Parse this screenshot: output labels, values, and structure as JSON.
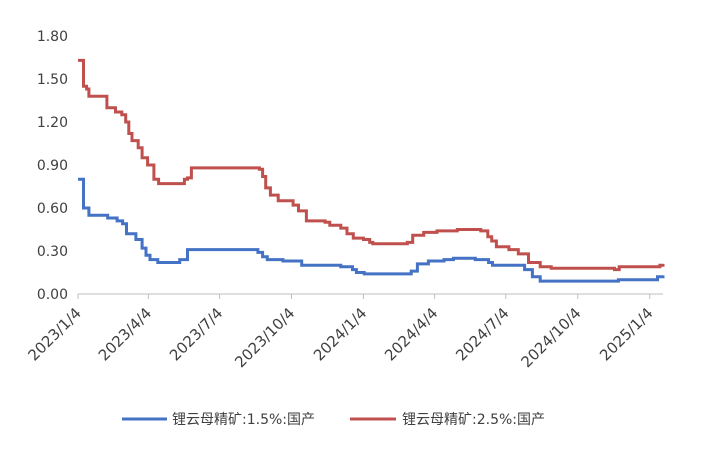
{
  "chart_data": {
    "type": "line",
    "title": "",
    "xlabel": "",
    "ylabel": "",
    "ylim": [
      0,
      1.8
    ],
    "yticks": [
      "0.00",
      "0.30",
      "0.60",
      "0.90",
      "1.20",
      "1.50",
      "1.80"
    ],
    "xticks": [
      "2023/1/4",
      "2023/4/4",
      "2023/7/4",
      "2023/10/4",
      "2024/1/4",
      "2024/4/4",
      "2024/7/4",
      "2024/10/4",
      "2025/1/4"
    ],
    "x_domain_days": [
      0,
      748
    ],
    "xtick_days": [
      0,
      90,
      181,
      273,
      365,
      456,
      547,
      639,
      731
    ],
    "legend_position": "bottom",
    "series": [
      {
        "name": "锂云母精矿:1.5%:国产",
        "color": "#4472C4",
        "points": [
          [
            0,
            0.8
          ],
          [
            7,
            0.8
          ],
          [
            7,
            0.6
          ],
          [
            11,
            0.6
          ],
          [
            14,
            0.55
          ],
          [
            35,
            0.55
          ],
          [
            38,
            0.53
          ],
          [
            50,
            0.51
          ],
          [
            57,
            0.49
          ],
          [
            62,
            0.42
          ],
          [
            74,
            0.38
          ],
          [
            82,
            0.32
          ],
          [
            87,
            0.27
          ],
          [
            92,
            0.24
          ],
          [
            102,
            0.22
          ],
          [
            125,
            0.22
          ],
          [
            130,
            0.24
          ],
          [
            137,
            0.24
          ],
          [
            140,
            0.31
          ],
          [
            222,
            0.31
          ],
          [
            230,
            0.29
          ],
          [
            236,
            0.26
          ],
          [
            242,
            0.24
          ],
          [
            262,
            0.23
          ],
          [
            286,
            0.2
          ],
          [
            336,
            0.19
          ],
          [
            351,
            0.17
          ],
          [
            356,
            0.15
          ],
          [
            366,
            0.14
          ],
          [
            420,
            0.14
          ],
          [
            426,
            0.16
          ],
          [
            434,
            0.21
          ],
          [
            448,
            0.23
          ],
          [
            468,
            0.24
          ],
          [
            480,
            0.25
          ],
          [
            500,
            0.25
          ],
          [
            508,
            0.24
          ],
          [
            525,
            0.22
          ],
          [
            530,
            0.2
          ],
          [
            565,
            0.2
          ],
          [
            571,
            0.17
          ],
          [
            581,
            0.12
          ],
          [
            591,
            0.09
          ],
          [
            680,
            0.09
          ],
          [
            691,
            0.1
          ],
          [
            738,
            0.1
          ],
          [
            741,
            0.12
          ],
          [
            748,
            0.13
          ]
        ]
      },
      {
        "name": "锂云母精矿:2.5%:国产",
        "color": "#C0504D",
        "points": [
          [
            0,
            1.63
          ],
          [
            7,
            1.63
          ],
          [
            7,
            1.45
          ],
          [
            11,
            1.43
          ],
          [
            14,
            1.38
          ],
          [
            31,
            1.38
          ],
          [
            37,
            1.3
          ],
          [
            48,
            1.27
          ],
          [
            56,
            1.25
          ],
          [
            61,
            1.2
          ],
          [
            65,
            1.12
          ],
          [
            69,
            1.07
          ],
          [
            77,
            1.02
          ],
          [
            82,
            0.95
          ],
          [
            89,
            0.9
          ],
          [
            97,
            0.8
          ],
          [
            103,
            0.77
          ],
          [
            133,
            0.77
          ],
          [
            136,
            0.8
          ],
          [
            140,
            0.81
          ],
          [
            145,
            0.88
          ],
          [
            222,
            0.88
          ],
          [
            232,
            0.87
          ],
          [
            236,
            0.82
          ],
          [
            240,
            0.74
          ],
          [
            246,
            0.69
          ],
          [
            256,
            0.65
          ],
          [
            275,
            0.62
          ],
          [
            282,
            0.58
          ],
          [
            292,
            0.51
          ],
          [
            316,
            0.5
          ],
          [
            322,
            0.48
          ],
          [
            336,
            0.46
          ],
          [
            344,
            0.42
          ],
          [
            352,
            0.39
          ],
          [
            365,
            0.38
          ],
          [
            373,
            0.36
          ],
          [
            377,
            0.35
          ],
          [
            421,
            0.36
          ],
          [
            428,
            0.41
          ],
          [
            442,
            0.43
          ],
          [
            459,
            0.44
          ],
          [
            485,
            0.45
          ],
          [
            500,
            0.45
          ],
          [
            515,
            0.44
          ],
          [
            524,
            0.4
          ],
          [
            529,
            0.37
          ],
          [
            535,
            0.33
          ],
          [
            551,
            0.31
          ],
          [
            563,
            0.28
          ],
          [
            576,
            0.22
          ],
          [
            591,
            0.19
          ],
          [
            605,
            0.18
          ],
          [
            664,
            0.18
          ],
          [
            686,
            0.17
          ],
          [
            692,
            0.19
          ],
          [
            740,
            0.19
          ],
          [
            744,
            0.2
          ],
          [
            748,
            0.21
          ]
        ]
      }
    ]
  }
}
